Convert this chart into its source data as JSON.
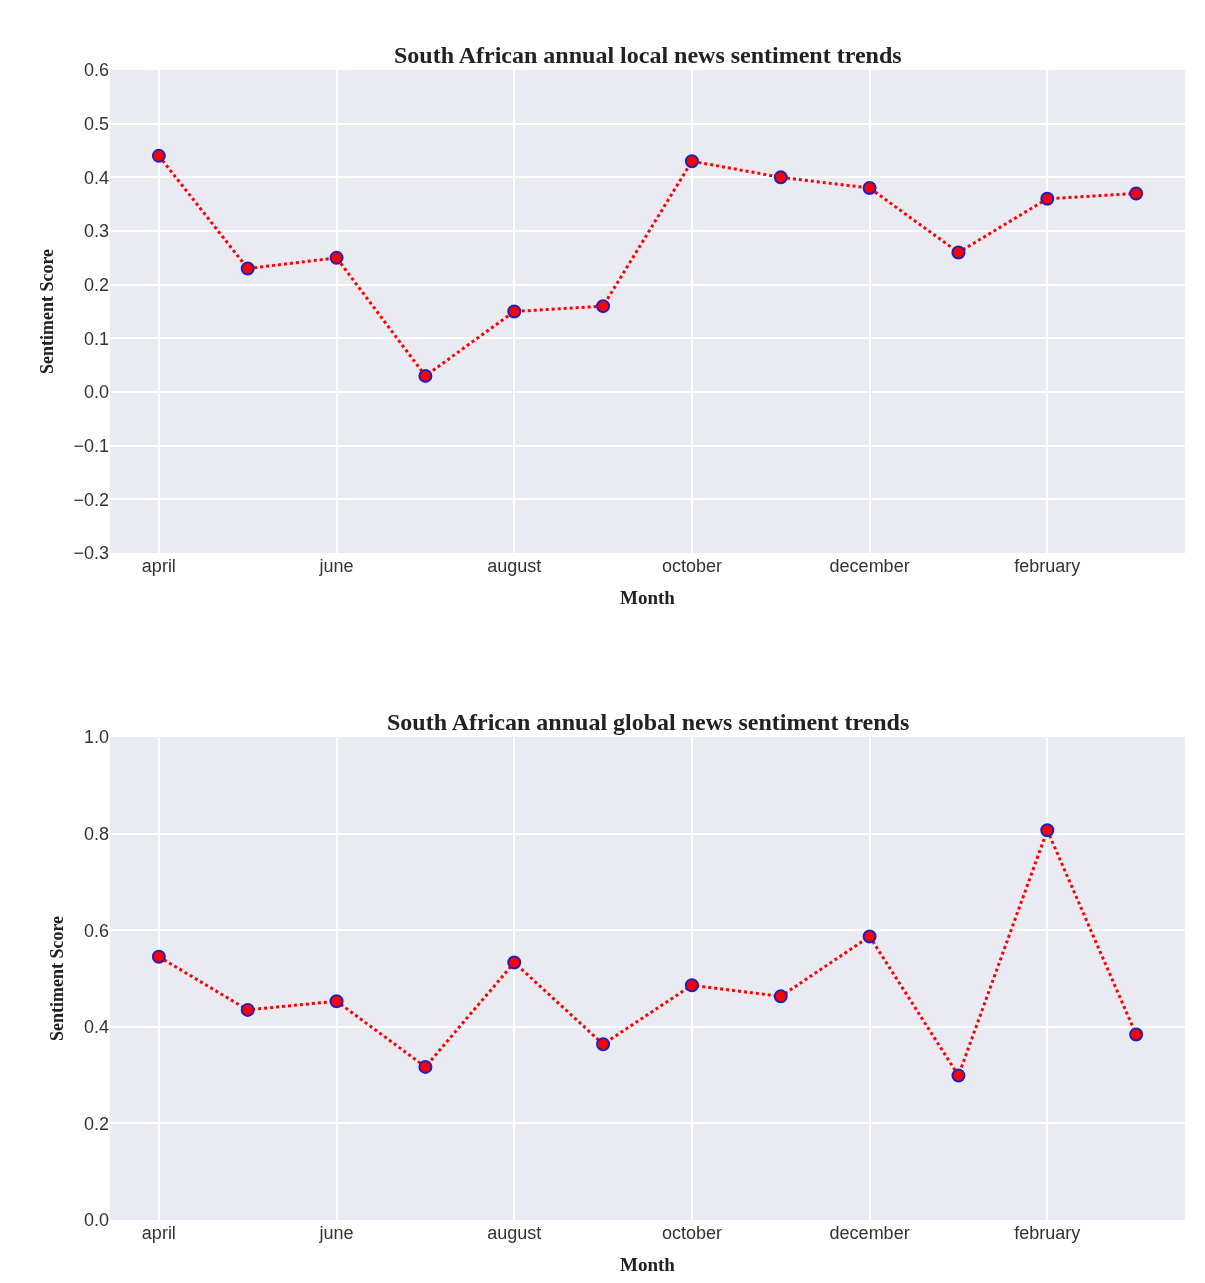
{
  "chart_data": [
    {
      "type": "line",
      "title": "South African annual local news sentiment trends",
      "xlabel": "Month",
      "ylabel": "Sentiment Score",
      "categories": [
        "april",
        null,
        "june",
        null,
        "august",
        null,
        "october",
        null,
        "december",
        null,
        "february",
        null
      ],
      "series": [
        {
          "color": "#ff0000",
          "values": [
            0.44,
            0.23,
            0.25,
            0.03,
            0.15,
            0.16,
            0.43,
            0.4,
            0.38,
            0.26,
            0.36,
            0.37
          ]
        }
      ],
      "ylim": [
        -0.3,
        0.6
      ],
      "yticks": [
        {
          "value": -0.3,
          "label": "−0.3"
        },
        {
          "value": -0.2,
          "label": "−0.2"
        },
        {
          "value": -0.1,
          "label": "−0.1"
        },
        {
          "value": 0.0,
          "label": "0.0"
        },
        {
          "value": 0.1,
          "label": "0.1"
        },
        {
          "value": 0.2,
          "label": "0.2"
        },
        {
          "value": 0.3,
          "label": "0.3"
        },
        {
          "value": 0.4,
          "label": "0.4"
        },
        {
          "value": 0.5,
          "label": "0.5"
        },
        {
          "value": 0.6,
          "label": "0.6"
        }
      ],
      "grid": true,
      "marker": "circle",
      "line_style": "dotted"
    },
    {
      "type": "line",
      "title": "South African annual global news sentiment trends",
      "xlabel": "Month",
      "ylabel": "Sentiment Score",
      "categories": [
        "april",
        null,
        "june",
        null,
        "august",
        null,
        "october",
        null,
        "december",
        null,
        "february",
        null
      ],
      "series": [
        {
          "color": "#ff0000",
          "values": [
            0.545,
            0.435,
            0.453,
            0.317,
            0.533,
            0.364,
            0.486,
            0.463,
            0.587,
            0.299,
            0.807,
            0.384
          ]
        }
      ],
      "ylim": [
        0.0,
        1.0
      ],
      "yticks": [
        {
          "value": 0.0,
          "label": "0.0"
        },
        {
          "value": 0.2,
          "label": "0.2"
        },
        {
          "value": 0.4,
          "label": "0.4"
        },
        {
          "value": 0.6,
          "label": "0.6"
        },
        {
          "value": 0.8,
          "label": "0.8"
        },
        {
          "value": 1.0,
          "label": "1.0"
        }
      ],
      "grid": true,
      "marker": "circle",
      "line_style": "dotted"
    }
  ]
}
